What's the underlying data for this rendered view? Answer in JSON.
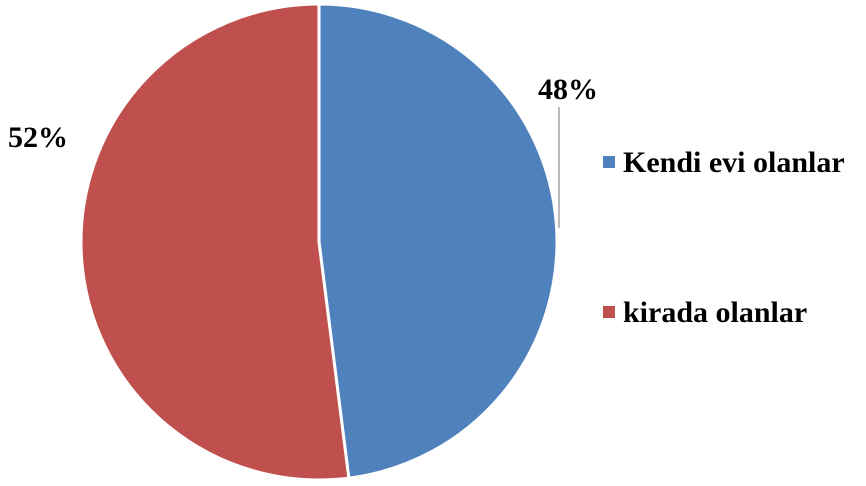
{
  "chart_data": {
    "type": "pie",
    "categories": [
      "Kendi evi olanlar",
      "kirada olanlar"
    ],
    "values": [
      48,
      52
    ],
    "labels": [
      "48%",
      "52%"
    ],
    "colors": [
      "#4F81BD",
      "#C0504D"
    ],
    "start_angle_deg": 0,
    "direction": "clockwise",
    "legend_position": "right",
    "title": "",
    "xlabel": "",
    "ylabel": ""
  }
}
